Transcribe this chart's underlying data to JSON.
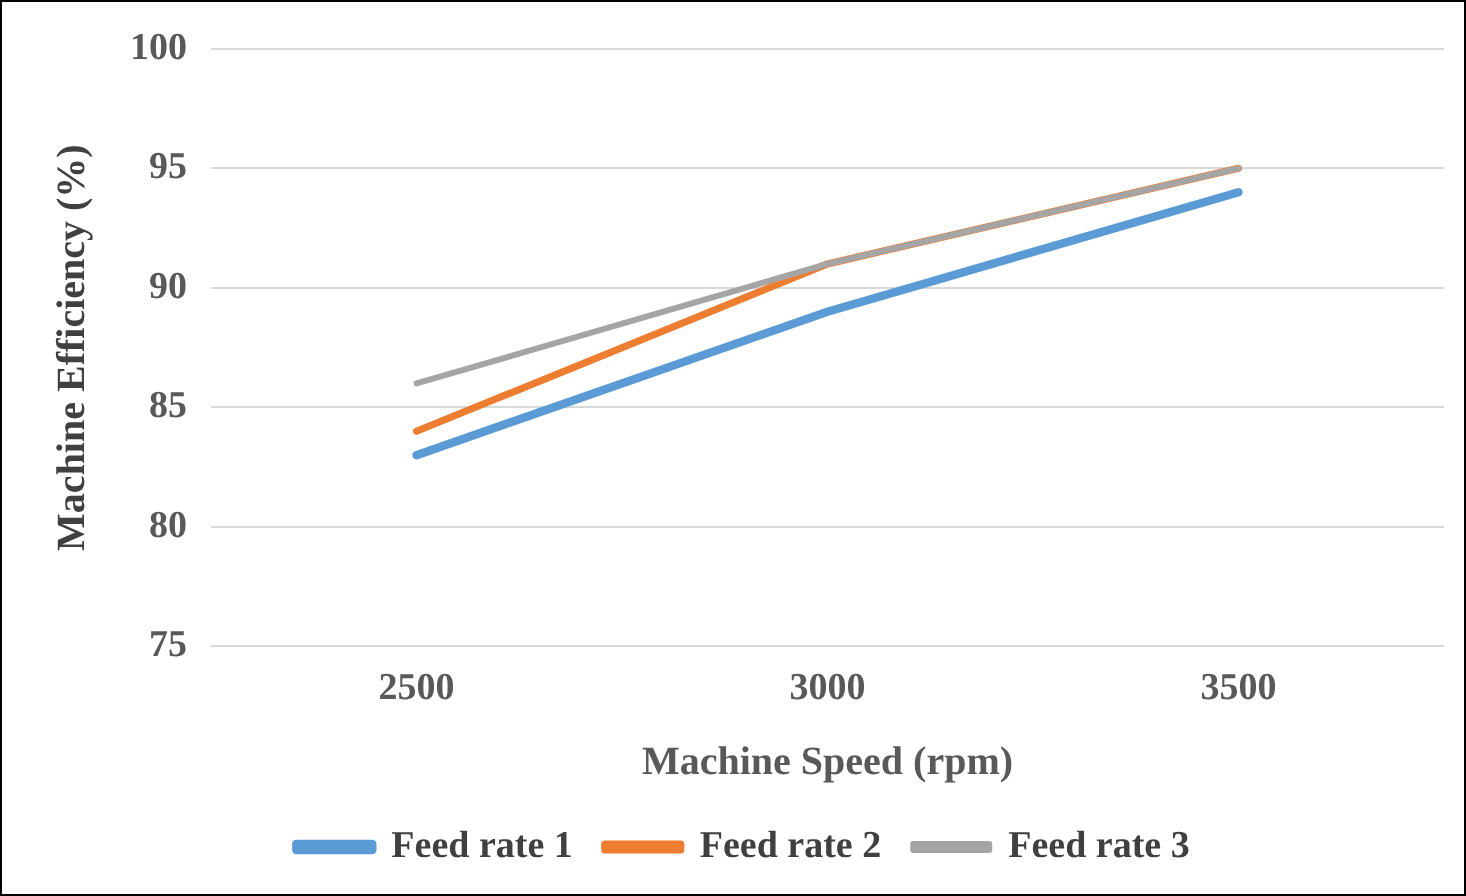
{
  "chart_data": {
    "type": "line",
    "xlabel": "Machine Speed (rpm)",
    "ylabel": "Machine Efficiency (%)",
    "categories": [
      "2500",
      "3000",
      "3500"
    ],
    "series": [
      {
        "name": "Feed rate 1",
        "color": "#5b9bd5",
        "values": [
          83,
          89,
          94
        ]
      },
      {
        "name": "Feed rate 2",
        "color": "#ed7d31",
        "values": [
          84,
          91,
          95
        ]
      },
      {
        "name": "Feed rate 3",
        "color": "#a5a5a5",
        "values": [
          86,
          91,
          95
        ]
      }
    ],
    "ylim": [
      75,
      100
    ],
    "yticks": [
      75,
      80,
      85,
      90,
      95,
      100
    ],
    "grid": "y",
    "legend": "bottom",
    "marker": "none",
    "line_style": "solid"
  }
}
